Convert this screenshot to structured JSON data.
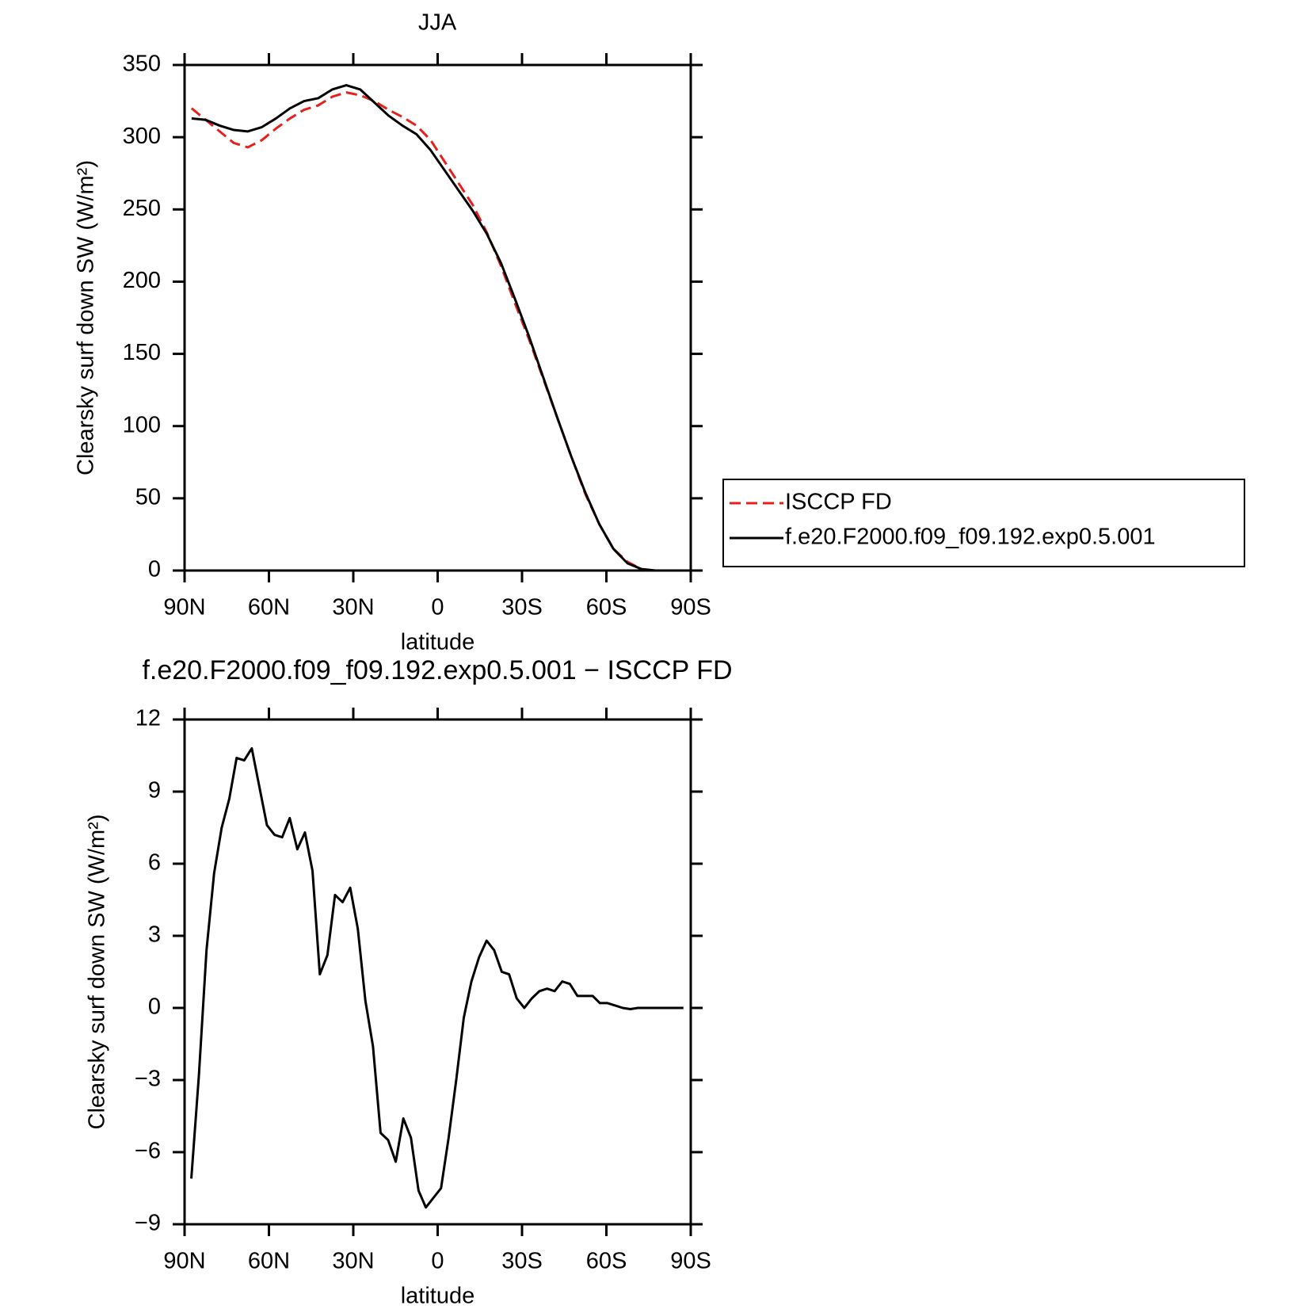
{
  "chart_data": [
    {
      "type": "line",
      "title": "JJA",
      "x_label": "latitude",
      "y_label": "Clearsky surf down SW (W/m²)",
      "x": [
        87.5,
        82.5,
        77.5,
        72.5,
        67.5,
        62.5,
        57.5,
        52.5,
        47.5,
        42.5,
        37.5,
        32.5,
        27.5,
        22.5,
        17.5,
        12.5,
        7.5,
        2.5,
        -2.5,
        -7.5,
        -12.5,
        -17.5,
        -22.5,
        -27.5,
        -32.5,
        -37.5,
        -42.5,
        -47.5,
        -52.5,
        -57.5,
        -62.5,
        -67.5,
        -72.5,
        -77.5,
        -82.5,
        -87.5
      ],
      "series": [
        {
          "name": "ISCCP FD",
          "color": "#e8201c",
          "line_style": "dashed",
          "values": [
            320,
            312,
            304,
            296,
            293,
            298,
            306,
            313,
            319,
            322,
            328,
            331,
            329,
            325,
            319,
            314,
            308,
            298,
            283,
            268,
            253,
            234,
            211,
            185,
            160,
            133,
            106,
            79,
            53,
            32,
            15,
            6,
            1,
            0,
            0,
            0
          ]
        },
        {
          "name": "f.e20.F2000.f09_f09.192.exp0.5.001",
          "color": "#000000",
          "line_style": "solid",
          "values": [
            313,
            312,
            308,
            305,
            304,
            307,
            313,
            320,
            325,
            327,
            333,
            336,
            333,
            324,
            315,
            308,
            302,
            291,
            277,
            263,
            249,
            233,
            213,
            188,
            162,
            134,
            106,
            79,
            54,
            32,
            15,
            5,
            1,
            0,
            0,
            0
          ]
        }
      ],
      "xlim": [
        90,
        -90
      ],
      "ylim": [
        0,
        350
      ],
      "xticks": [
        {
          "value": 90,
          "label": "90N"
        },
        {
          "value": 60,
          "label": "60N"
        },
        {
          "value": 30,
          "label": "30N"
        },
        0,
        {
          "value": -30,
          "label": "30S"
        },
        {
          "value": -60,
          "label": "60S"
        },
        {
          "value": -90,
          "label": "90S"
        }
      ],
      "yticks": [
        0,
        50,
        100,
        150,
        200,
        250,
        300,
        350
      ],
      "legend": "right"
    },
    {
      "type": "line",
      "title": "f.e20.F2000.f09_f09.192.exp0.5.001 − ISCCP FD",
      "x_label": "latitude",
      "y_label": "Clearsky surf down SW (W/m²)",
      "x": [
        87.6,
        84.9,
        82.2,
        79.5,
        76.8,
        74.1,
        71.5,
        68.8,
        66.1,
        63.4,
        60.7,
        58.0,
        55.3,
        52.6,
        49.9,
        47.2,
        44.5,
        41.9,
        39.2,
        36.5,
        33.8,
        31.1,
        28.4,
        25.7,
        23.0,
        20.3,
        17.6,
        14.9,
        12.2,
        9.5,
        6.8,
        4.2,
        1.5,
        -1.2,
        -3.9,
        -6.6,
        -9.3,
        -12.0,
        -14.7,
        -17.4,
        -20.1,
        -22.8,
        -25.4,
        -28.1,
        -30.8,
        -33.5,
        -36.2,
        -38.9,
        -41.6,
        -44.3,
        -47.0,
        -49.7,
        -52.4,
        -55.1,
        -57.7,
        -60.4,
        -63.1,
        -65.8,
        -68.5,
        -71.2,
        -73.9,
        -76.6,
        -79.3,
        -82.0,
        -84.7,
        -87.4
      ],
      "series": [
        {
          "color": "#000000",
          "line_style": "solid",
          "values": [
            -7.1,
            -2.8,
            2.4,
            5.6,
            7.5,
            8.7,
            10.4,
            10.3,
            10.8,
            9.2,
            7.6,
            7.2,
            7.1,
            7.9,
            6.6,
            7.3,
            5.7,
            1.4,
            2.2,
            4.7,
            4.4,
            5.0,
            3.3,
            0.3,
            -1.6,
            -5.2,
            -5.5,
            -6.4,
            -4.6,
            -5.4,
            -7.6,
            -8.3,
            -7.9,
            -7.5,
            -5.4,
            -3.0,
            -0.4,
            1.1,
            2.1,
            2.8,
            2.4,
            1.5,
            1.4,
            0.4,
            0.0,
            0.4,
            0.7,
            0.8,
            0.7,
            1.1,
            1.0,
            0.5,
            0.5,
            0.5,
            0.2,
            0.2,
            0.1,
            0.0,
            -0.05,
            0.0,
            0.0,
            0.0,
            0.0,
            0.0,
            0.0,
            0.0
          ]
        }
      ],
      "xlim": [
        90,
        -90
      ],
      "ylim": [
        -9,
        12
      ],
      "xticks": [
        {
          "value": 90,
          "label": "90N"
        },
        {
          "value": 60,
          "label": "60N"
        },
        {
          "value": 30,
          "label": "30N"
        },
        0,
        {
          "value": -30,
          "label": "30S"
        },
        {
          "value": -60,
          "label": "60S"
        },
        {
          "value": -90,
          "label": "90S"
        }
      ],
      "yticks": [
        {
          "value": -9,
          "label": "−9"
        },
        {
          "value": -6,
          "label": "−6"
        },
        {
          "value": -3,
          "label": "−3"
        },
        0,
        3,
        6,
        9,
        12
      ]
    }
  ]
}
